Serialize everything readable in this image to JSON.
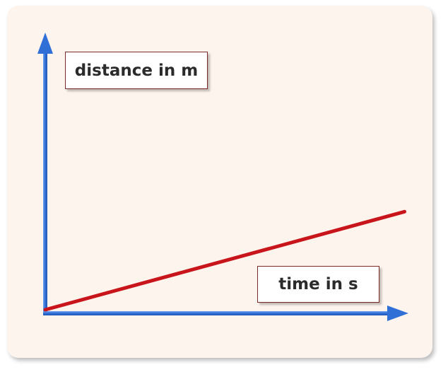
{
  "colors": {
    "panel_background": "#fdf4ee",
    "axis": "#2f6fd6",
    "series_line": "#c8141b",
    "label_border": "#7a2a24",
    "label_text": "#2b2b2b"
  },
  "chart_data": {
    "type": "line",
    "title": "",
    "xlabel": "time in s",
    "ylabel": "distance in m",
    "grid": false,
    "legend": "none",
    "ticks": false,
    "xlim": [
      0,
      1
    ],
    "ylim": [
      0,
      1
    ],
    "series": [
      {
        "x": [
          0,
          0.9
        ],
        "y": [
          0,
          0.38
        ]
      }
    ]
  }
}
